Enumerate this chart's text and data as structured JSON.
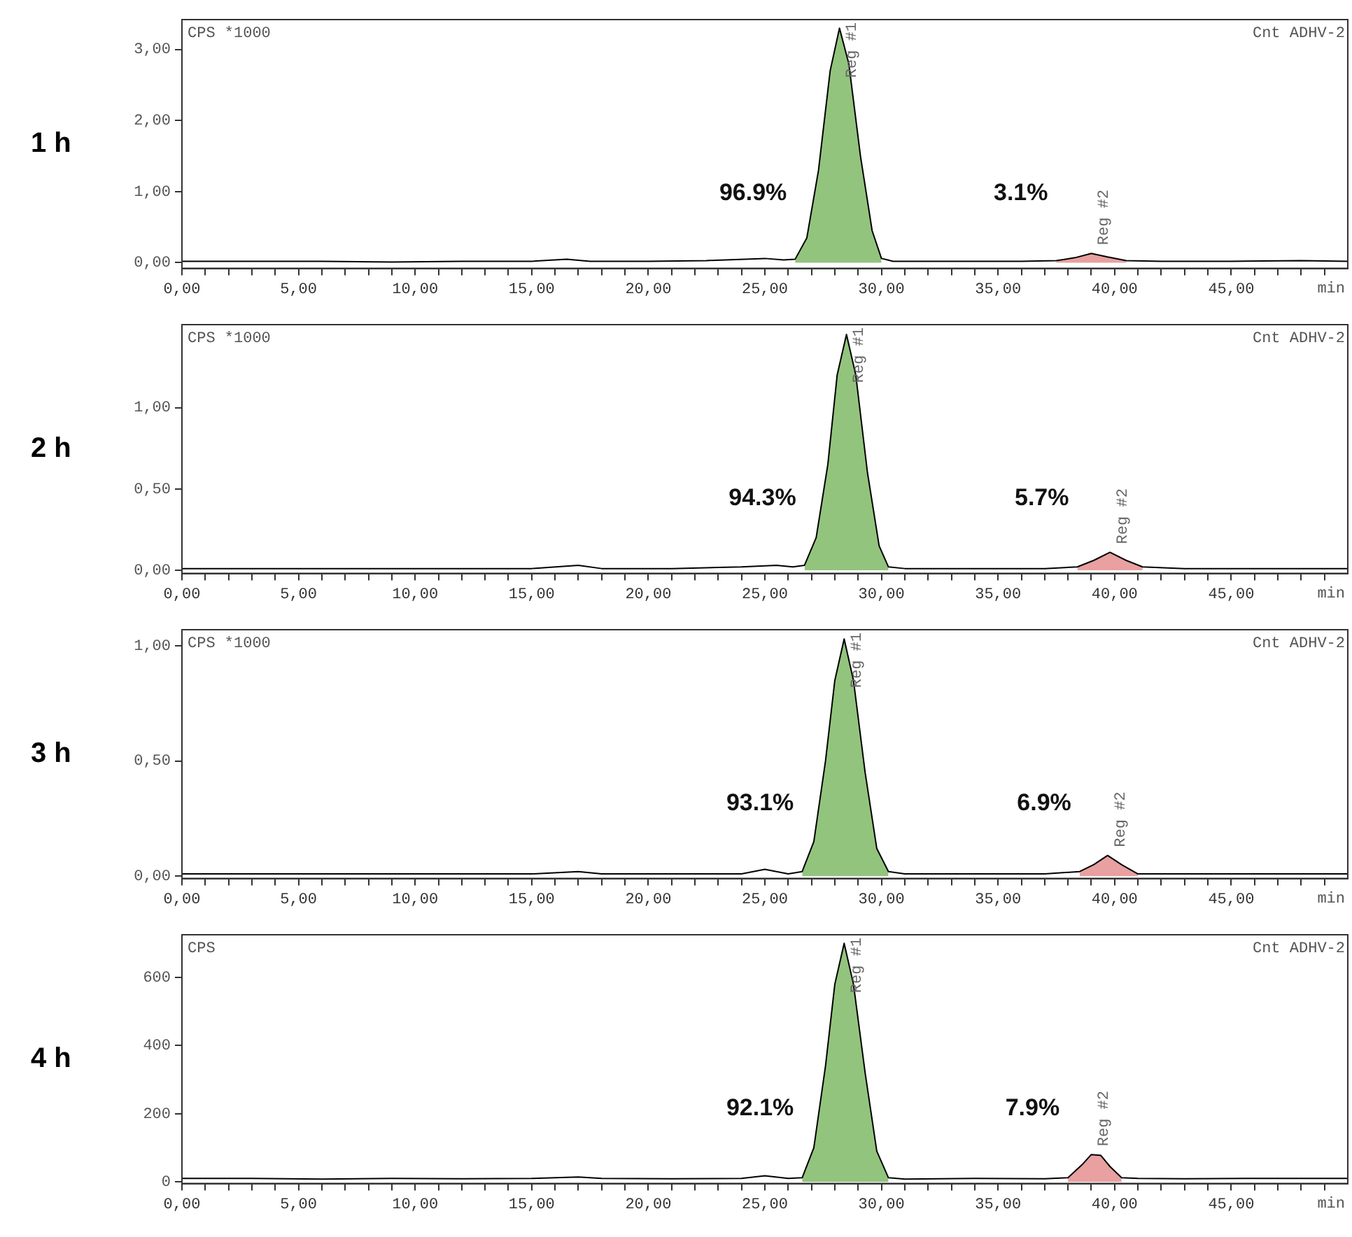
{
  "chart_data": [
    {
      "type": "line",
      "title": "1 h",
      "ylabel": "CPS *1000",
      "xlabel": "min",
      "annotations": [
        "Cnt ADHV-2",
        "96.9%",
        "3.1%"
      ],
      "xlim": [
        0,
        50
      ],
      "ylim": [
        -0.08,
        3.42
      ],
      "xticks": [
        {
          "value": 0,
          "label": "0,00"
        },
        {
          "value": 1,
          "label": null
        },
        {
          "value": 2,
          "label": null
        },
        {
          "value": 3,
          "label": null
        },
        {
          "value": 4,
          "label": null
        },
        {
          "value": 5,
          "label": "5,00"
        },
        {
          "value": 6,
          "label": null
        },
        {
          "value": 7,
          "label": null
        },
        {
          "value": 8,
          "label": null
        },
        {
          "value": 9,
          "label": null
        },
        {
          "value": 10,
          "label": "10,00"
        },
        {
          "value": 11,
          "label": null
        },
        {
          "value": 12,
          "label": null
        },
        {
          "value": 13,
          "label": null
        },
        {
          "value": 14,
          "label": null
        },
        {
          "value": 15,
          "label": "15,00"
        },
        {
          "value": 16,
          "label": null
        },
        {
          "value": 17,
          "label": null
        },
        {
          "value": 18,
          "label": null
        },
        {
          "value": 19,
          "label": null
        },
        {
          "value": 20,
          "label": "20,00"
        },
        {
          "value": 21,
          "label": null
        },
        {
          "value": 22,
          "label": null
        },
        {
          "value": 23,
          "label": null
        },
        {
          "value": 24,
          "label": null
        },
        {
          "value": 25,
          "label": "25,00"
        },
        {
          "value": 26,
          "label": null
        },
        {
          "value": 27,
          "label": null
        },
        {
          "value": 28,
          "label": null
        },
        {
          "value": 29,
          "label": null
        },
        {
          "value": 30,
          "label": "30,00"
        },
        {
          "value": 31,
          "label": null
        },
        {
          "value": 32,
          "label": null
        },
        {
          "value": 33,
          "label": null
        },
        {
          "value": 34,
          "label": null
        },
        {
          "value": 35,
          "label": "35,00"
        },
        {
          "value": 36,
          "label": null
        },
        {
          "value": 37,
          "label": null
        },
        {
          "value": 38,
          "label": null
        },
        {
          "value": 39,
          "label": null
        },
        {
          "value": 40,
          "label": "40,00"
        },
        {
          "value": 41,
          "label": null
        },
        {
          "value": 42,
          "label": null
        },
        {
          "value": 43,
          "label": null
        },
        {
          "value": 44,
          "label": null
        },
        {
          "value": 45,
          "label": "45,00"
        },
        {
          "value": 46,
          "label": null
        },
        {
          "value": 47,
          "label": null
        },
        {
          "value": 48,
          "label": null
        },
        {
          "value": 49,
          "label": null
        }
      ],
      "yticks": [
        {
          "value": 0,
          "label": "0,00"
        },
        {
          "value": 1,
          "label": "1,00"
        },
        {
          "value": 2,
          "label": "2,00"
        },
        {
          "value": 3,
          "label": "3,00"
        }
      ],
      "series": [
        {
          "type": "line",
          "color": "#000000",
          "x": [
            0,
            3,
            6,
            9,
            12,
            15,
            16.5,
            17.5,
            20,
            22.5,
            25,
            25.8,
            26.3,
            26.8,
            27.3,
            27.8,
            28.2,
            28.6,
            29.1,
            29.6,
            30.0,
            30.5,
            33,
            36,
            37.5,
            38.3,
            39,
            39.7,
            40.5,
            42,
            45,
            48,
            50
          ],
          "values": [
            0.02,
            0.02,
            0.02,
            0.01,
            0.02,
            0.02,
            0.05,
            0.02,
            0.02,
            0.03,
            0.06,
            0.04,
            0.05,
            0.35,
            1.3,
            2.7,
            3.3,
            2.8,
            1.5,
            0.45,
            0.06,
            0.02,
            0.02,
            0.02,
            0.03,
            0.07,
            0.13,
            0.08,
            0.03,
            0.02,
            0.02,
            0.03,
            0.02
          ]
        },
        {
          "type": "area",
          "name": "Reg #1",
          "color": "#93c47d",
          "x": [
            26.3,
            26.8,
            27.3,
            27.8,
            28.2,
            28.6,
            29.1,
            29.6,
            30.0
          ],
          "values": [
            0.05,
            0.35,
            1.3,
            2.7,
            3.3,
            2.8,
            1.5,
            0.45,
            0.06
          ]
        },
        {
          "type": "area",
          "name": "Reg #2",
          "color": "#e8a0a0",
          "x": [
            37.5,
            38.3,
            39,
            39.7,
            40.5
          ],
          "values": [
            0.03,
            0.07,
            0.13,
            0.08,
            0.03
          ]
        }
      ]
    },
    {
      "type": "line",
      "title": "2 h",
      "ylabel": "CPS *1000",
      "xlabel": "min",
      "annotations": [
        "Cnt ADHV-2",
        "94.3%",
        "5.7%"
      ],
      "xlim": [
        0,
        50
      ],
      "ylim": [
        -0.02,
        1.51
      ],
      "xticks": [
        {
          "value": 0,
          "label": "0,00"
        },
        {
          "value": 1,
          "label": null
        },
        {
          "value": 2,
          "label": null
        },
        {
          "value": 3,
          "label": null
        },
        {
          "value": 4,
          "label": null
        },
        {
          "value": 5,
          "label": "5,00"
        },
        {
          "value": 6,
          "label": null
        },
        {
          "value": 7,
          "label": null
        },
        {
          "value": 8,
          "label": null
        },
        {
          "value": 9,
          "label": null
        },
        {
          "value": 10,
          "label": "10,00"
        },
        {
          "value": 11,
          "label": null
        },
        {
          "value": 12,
          "label": null
        },
        {
          "value": 13,
          "label": null
        },
        {
          "value": 14,
          "label": null
        },
        {
          "value": 15,
          "label": "15,00"
        },
        {
          "value": 16,
          "label": null
        },
        {
          "value": 17,
          "label": null
        },
        {
          "value": 18,
          "label": null
        },
        {
          "value": 19,
          "label": null
        },
        {
          "value": 20,
          "label": "20,00"
        },
        {
          "value": 21,
          "label": null
        },
        {
          "value": 22,
          "label": null
        },
        {
          "value": 23,
          "label": null
        },
        {
          "value": 24,
          "label": null
        },
        {
          "value": 25,
          "label": "25,00"
        },
        {
          "value": 26,
          "label": null
        },
        {
          "value": 27,
          "label": null
        },
        {
          "value": 28,
          "label": null
        },
        {
          "value": 29,
          "label": null
        },
        {
          "value": 30,
          "label": "30,00"
        },
        {
          "value": 31,
          "label": null
        },
        {
          "value": 32,
          "label": null
        },
        {
          "value": 33,
          "label": null
        },
        {
          "value": 34,
          "label": null
        },
        {
          "value": 35,
          "label": "35,00"
        },
        {
          "value": 36,
          "label": null
        },
        {
          "value": 37,
          "label": null
        },
        {
          "value": 38,
          "label": null
        },
        {
          "value": 39,
          "label": null
        },
        {
          "value": 40,
          "label": "40,00"
        },
        {
          "value": 41,
          "label": null
        },
        {
          "value": 42,
          "label": null
        },
        {
          "value": 43,
          "label": null
        },
        {
          "value": 44,
          "label": null
        },
        {
          "value": 45,
          "label": "45,00"
        },
        {
          "value": 46,
          "label": null
        },
        {
          "value": 47,
          "label": null
        },
        {
          "value": 48,
          "label": null
        },
        {
          "value": 49,
          "label": null
        }
      ],
      "yticks": [
        {
          "value": 0,
          "label": "0,00"
        },
        {
          "value": 0.5,
          "label": "0,50"
        },
        {
          "value": 1,
          "label": "1,00"
        }
      ],
      "series": [
        {
          "type": "line",
          "color": "#000000",
          "x": [
            0,
            3,
            6,
            9,
            12,
            15,
            17,
            18,
            21,
            24,
            25.5,
            26.2,
            26.7,
            27.2,
            27.7,
            28.1,
            28.5,
            28.9,
            29.4,
            29.9,
            30.3,
            31,
            34,
            37,
            38.4,
            39.1,
            39.8,
            40.5,
            41.2,
            43,
            46,
            50
          ],
          "values": [
            0.01,
            0.01,
            0.01,
            0.01,
            0.01,
            0.01,
            0.03,
            0.01,
            0.01,
            0.02,
            0.03,
            0.02,
            0.03,
            0.2,
            0.65,
            1.2,
            1.45,
            1.2,
            0.6,
            0.15,
            0.02,
            0.01,
            0.01,
            0.01,
            0.02,
            0.06,
            0.11,
            0.06,
            0.02,
            0.01,
            0.01,
            0.01
          ]
        },
        {
          "type": "area",
          "name": "Reg #1",
          "color": "#93c47d",
          "x": [
            26.7,
            27.2,
            27.7,
            28.1,
            28.5,
            28.9,
            29.4,
            29.9,
            30.3
          ],
          "values": [
            0.03,
            0.2,
            0.65,
            1.2,
            1.45,
            1.2,
            0.6,
            0.15,
            0.02
          ]
        },
        {
          "type": "area",
          "name": "Reg #2",
          "color": "#e8a0a0",
          "x": [
            38.4,
            39.1,
            39.8,
            40.5,
            41.2
          ],
          "values": [
            0.02,
            0.06,
            0.11,
            0.06,
            0.02
          ]
        }
      ]
    },
    {
      "type": "line",
      "title": "3 h",
      "ylabel": "CPS *1000",
      "xlabel": "min",
      "annotations": [
        "Cnt ADHV-2",
        "93.1%",
        "6.9%"
      ],
      "xlim": [
        0,
        50
      ],
      "ylim": [
        -0.01,
        1.07
      ],
      "xticks": [
        {
          "value": 0,
          "label": "0,00"
        },
        {
          "value": 1,
          "label": null
        },
        {
          "value": 2,
          "label": null
        },
        {
          "value": 3,
          "label": null
        },
        {
          "value": 4,
          "label": null
        },
        {
          "value": 5,
          "label": "5,00"
        },
        {
          "value": 6,
          "label": null
        },
        {
          "value": 7,
          "label": null
        },
        {
          "value": 8,
          "label": null
        },
        {
          "value": 9,
          "label": null
        },
        {
          "value": 10,
          "label": "10,00"
        },
        {
          "value": 11,
          "label": null
        },
        {
          "value": 12,
          "label": null
        },
        {
          "value": 13,
          "label": null
        },
        {
          "value": 14,
          "label": null
        },
        {
          "value": 15,
          "label": "15,00"
        },
        {
          "value": 16,
          "label": null
        },
        {
          "value": 17,
          "label": null
        },
        {
          "value": 18,
          "label": null
        },
        {
          "value": 19,
          "label": null
        },
        {
          "value": 20,
          "label": "20,00"
        },
        {
          "value": 21,
          "label": null
        },
        {
          "value": 22,
          "label": null
        },
        {
          "value": 23,
          "label": null
        },
        {
          "value": 24,
          "label": null
        },
        {
          "value": 25,
          "label": "25,00"
        },
        {
          "value": 26,
          "label": null
        },
        {
          "value": 27,
          "label": null
        },
        {
          "value": 28,
          "label": null
        },
        {
          "value": 29,
          "label": null
        },
        {
          "value": 30,
          "label": "30,00"
        },
        {
          "value": 31,
          "label": null
        },
        {
          "value": 32,
          "label": null
        },
        {
          "value": 33,
          "label": null
        },
        {
          "value": 34,
          "label": null
        },
        {
          "value": 35,
          "label": "35,00"
        },
        {
          "value": 36,
          "label": null
        },
        {
          "value": 37,
          "label": null
        },
        {
          "value": 38,
          "label": null
        },
        {
          "value": 39,
          "label": null
        },
        {
          "value": 40,
          "label": "40,00"
        },
        {
          "value": 41,
          "label": null
        },
        {
          "value": 42,
          "label": null
        },
        {
          "value": 43,
          "label": null
        },
        {
          "value": 44,
          "label": null
        },
        {
          "value": 45,
          "label": "45,00"
        },
        {
          "value": 46,
          "label": null
        },
        {
          "value": 47,
          "label": null
        },
        {
          "value": 48,
          "label": null
        },
        {
          "value": 49,
          "label": null
        }
      ],
      "yticks": [
        {
          "value": 0,
          "label": "0,00"
        },
        {
          "value": 0.5,
          "label": "0,50"
        },
        {
          "value": 1,
          "label": "1,00"
        }
      ],
      "series": [
        {
          "type": "line",
          "color": "#000000",
          "x": [
            0,
            3,
            6,
            9,
            12,
            15,
            17,
            18,
            21,
            24,
            25,
            26,
            26.6,
            27.1,
            27.6,
            28.0,
            28.4,
            28.8,
            29.3,
            29.8,
            30.3,
            31,
            34,
            37,
            38.5,
            39.1,
            39.7,
            40.3,
            41,
            43,
            46,
            50
          ],
          "values": [
            0.01,
            0.01,
            0.01,
            0.01,
            0.01,
            0.01,
            0.02,
            0.01,
            0.01,
            0.01,
            0.03,
            0.01,
            0.02,
            0.15,
            0.5,
            0.85,
            1.03,
            0.85,
            0.45,
            0.12,
            0.02,
            0.01,
            0.01,
            0.01,
            0.02,
            0.05,
            0.09,
            0.05,
            0.01,
            0.01,
            0.01,
            0.01
          ]
        },
        {
          "type": "area",
          "name": "Reg #1",
          "color": "#93c47d",
          "x": [
            26.6,
            27.1,
            27.6,
            28.0,
            28.4,
            28.8,
            29.3,
            29.8,
            30.3
          ],
          "values": [
            0.02,
            0.15,
            0.5,
            0.85,
            1.03,
            0.85,
            0.45,
            0.12,
            0.02
          ]
        },
        {
          "type": "area",
          "name": "Reg #2",
          "color": "#e8a0a0",
          "x": [
            38.5,
            39.1,
            39.7,
            40.3,
            41
          ],
          "values": [
            0.02,
            0.05,
            0.09,
            0.05,
            0.01
          ]
        }
      ]
    },
    {
      "type": "line",
      "title": "4 h",
      "ylabel": "CPS",
      "xlabel": "min",
      "annotations": [
        "Cnt ADHV-2",
        "92.1%",
        "7.9%"
      ],
      "xlim": [
        0,
        50
      ],
      "ylim": [
        -5,
        725
      ],
      "xticks": [
        {
          "value": 0,
          "label": "0,00"
        },
        {
          "value": 1,
          "label": null
        },
        {
          "value": 2,
          "label": null
        },
        {
          "value": 3,
          "label": null
        },
        {
          "value": 4,
          "label": null
        },
        {
          "value": 5,
          "label": "5,00"
        },
        {
          "value": 6,
          "label": null
        },
        {
          "value": 7,
          "label": null
        },
        {
          "value": 8,
          "label": null
        },
        {
          "value": 9,
          "label": null
        },
        {
          "value": 10,
          "label": "10,00"
        },
        {
          "value": 11,
          "label": null
        },
        {
          "value": 12,
          "label": null
        },
        {
          "value": 13,
          "label": null
        },
        {
          "value": 14,
          "label": null
        },
        {
          "value": 15,
          "label": "15,00"
        },
        {
          "value": 16,
          "label": null
        },
        {
          "value": 17,
          "label": null
        },
        {
          "value": 18,
          "label": null
        },
        {
          "value": 19,
          "label": null
        },
        {
          "value": 20,
          "label": "20,00"
        },
        {
          "value": 21,
          "label": null
        },
        {
          "value": 22,
          "label": null
        },
        {
          "value": 23,
          "label": null
        },
        {
          "value": 24,
          "label": null
        },
        {
          "value": 25,
          "label": "25,00"
        },
        {
          "value": 26,
          "label": null
        },
        {
          "value": 27,
          "label": null
        },
        {
          "value": 28,
          "label": null
        },
        {
          "value": 29,
          "label": null
        },
        {
          "value": 30,
          "label": "30,00"
        },
        {
          "value": 31,
          "label": null
        },
        {
          "value": 32,
          "label": null
        },
        {
          "value": 33,
          "label": null
        },
        {
          "value": 34,
          "label": null
        },
        {
          "value": 35,
          "label": "35,00"
        },
        {
          "value": 36,
          "label": null
        },
        {
          "value": 37,
          "label": null
        },
        {
          "value": 38,
          "label": null
        },
        {
          "value": 39,
          "label": null
        },
        {
          "value": 40,
          "label": "40,00"
        },
        {
          "value": 41,
          "label": null
        },
        {
          "value": 42,
          "label": null
        },
        {
          "value": 43,
          "label": null
        },
        {
          "value": 44,
          "label": null
        },
        {
          "value": 45,
          "label": "45,00"
        },
        {
          "value": 46,
          "label": null
        },
        {
          "value": 47,
          "label": null
        },
        {
          "value": 48,
          "label": null
        },
        {
          "value": 49,
          "label": null
        }
      ],
      "yticks": [
        0,
        200,
        400,
        600
      ],
      "series": [
        {
          "type": "line",
          "color": "#000000",
          "x": [
            0,
            3,
            6,
            9,
            12,
            15,
            17,
            18,
            21,
            24,
            25,
            26,
            26.6,
            27.1,
            27.6,
            28.0,
            28.4,
            28.8,
            29.3,
            29.8,
            30.3,
            31,
            34,
            37,
            38,
            38.6,
            39.0,
            39.4,
            39.8,
            40.3,
            41,
            43,
            46,
            50
          ],
          "values": [
            10,
            10,
            8,
            10,
            9,
            10,
            14,
            10,
            9,
            10,
            18,
            10,
            12,
            100,
            340,
            580,
            700,
            580,
            320,
            90,
            12,
            8,
            10,
            9,
            12,
            50,
            80,
            78,
            45,
            12,
            10,
            9,
            10,
            10
          ]
        },
        {
          "type": "area",
          "name": "Reg #1",
          "color": "#93c47d",
          "x": [
            26.6,
            27.1,
            27.6,
            28.0,
            28.4,
            28.8,
            29.3,
            29.8,
            30.3
          ],
          "values": [
            12,
            100,
            340,
            580,
            700,
            580,
            320,
            90,
            12
          ]
        },
        {
          "type": "area",
          "name": "Reg #2",
          "color": "#e8a0a0",
          "x": [
            38,
            38.6,
            39.0,
            39.4,
            39.8,
            40.3
          ],
          "values": [
            12,
            50,
            80,
            78,
            45,
            12
          ]
        }
      ]
    }
  ]
}
